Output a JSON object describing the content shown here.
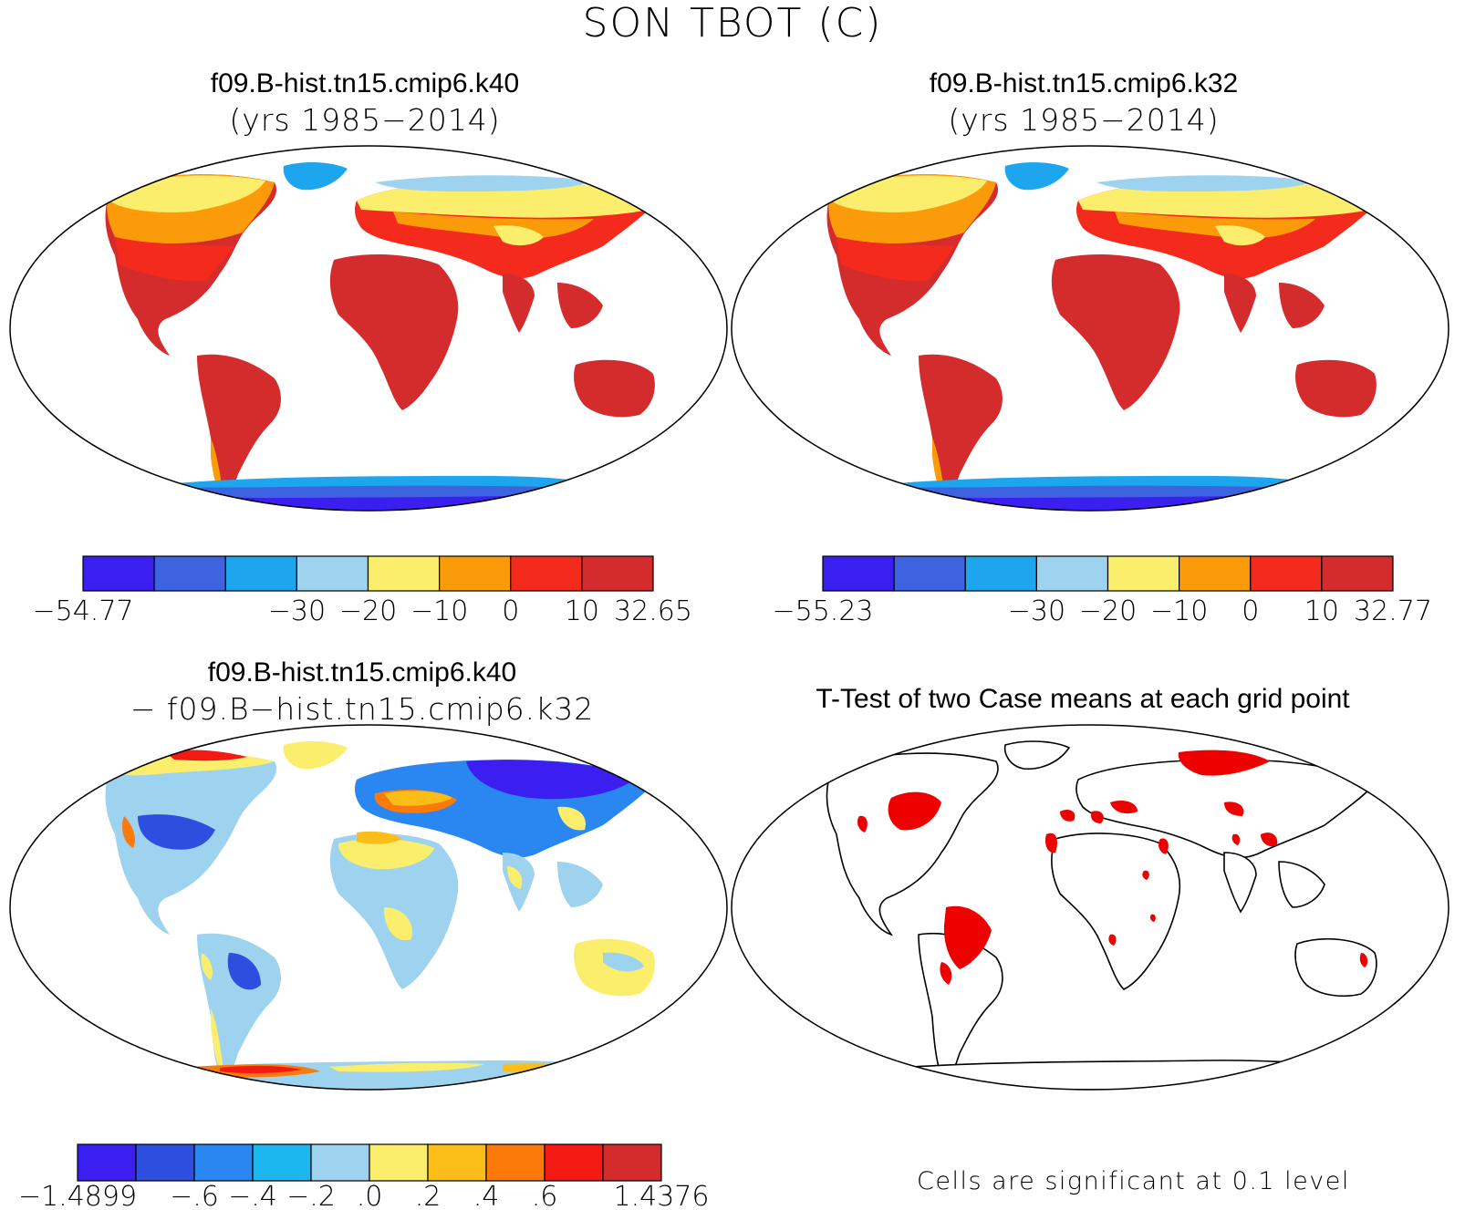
{
  "title": "SON TBOT (C)",
  "panels": {
    "a": {
      "case": "f09.B-hist.tn15.cmip6.k40",
      "years": "(yrs 1985−2014)",
      "colorbar": {
        "colors": [
          "#3b1ff0",
          "#3d63e0",
          "#1da6ee",
          "#9dd3ee",
          "#fbee6c",
          "#fb9b09",
          "#f42a1c",
          "#d42c2c"
        ],
        "labels": [
          "−54.77",
          "−30",
          "−20",
          "−10",
          "0",
          "10",
          "32.65"
        ]
      }
    },
    "b": {
      "case": "f09.B-hist.tn15.cmip6.k32",
      "years": "(yrs 1985−2014)",
      "colorbar": {
        "colors": [
          "#3b1ff0",
          "#3d63e0",
          "#1da6ee",
          "#9dd3ee",
          "#fbee6c",
          "#fb9b09",
          "#f42a1c",
          "#d42c2c"
        ],
        "labels": [
          "−55.23",
          "−30",
          "−20",
          "−10",
          "0",
          "10",
          "32.77"
        ]
      }
    },
    "c": {
      "line1": "f09.B-hist.tn15.cmip6.k40",
      "line2": "− f09.B−hist.tn15.cmip6.k32",
      "colorbar": {
        "colors": [
          "#3b1ff0",
          "#2c4fe0",
          "#2a86f0",
          "#1db7f0",
          "#9dd3ee",
          "#fbee6c",
          "#fbbd18",
          "#fb7a0a",
          "#f41a14",
          "#d42c2c"
        ],
        "labels": [
          "−1.4899",
          "−.6",
          "−.4",
          "−.2",
          ".0",
          ".2",
          ".4",
          ".6",
          "1.4376"
        ]
      }
    },
    "d": {
      "title": "T-Test of two Case means at each grid point",
      "footnote": "Cells are significant at 0.1 level",
      "sig_color": "#ee0000"
    }
  }
}
